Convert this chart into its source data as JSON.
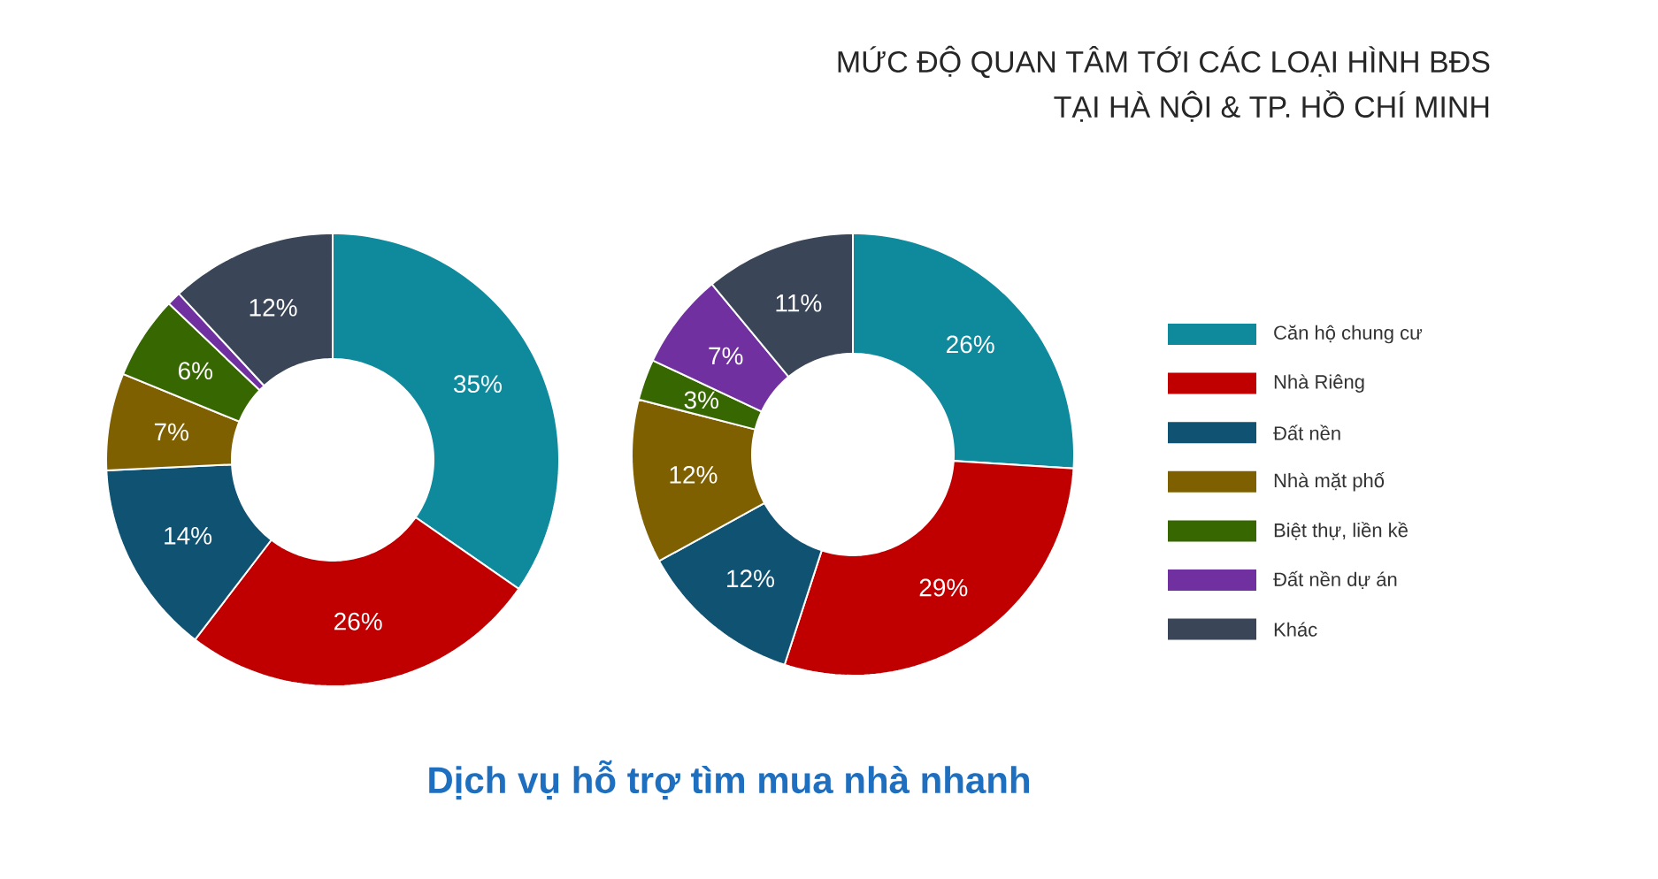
{
  "chart_data": [
    {
      "type": "donut",
      "categories": [
        null,
        null,
        null,
        null,
        null,
        null,
        null
      ],
      "values": [
        35,
        26,
        14,
        7,
        6,
        1,
        12
      ],
      "value_labels": [
        "35%",
        "26%",
        "14%",
        "7%",
        "6%",
        null,
        "12%"
      ],
      "colors": [
        "#0e8a9c",
        "#c00000",
        "#0f5272",
        "#7f6000",
        "#376700",
        "#7030a0",
        "#3a4658"
      ],
      "annotations": [
        "Dịch vụ hỗ trợ tìm mua nhà nhanh"
      ],
      "legend": false
    },
    {
      "type": "donut",
      "title": "MỨC ĐỘ QUAN TÂM TỚI CÁC LOẠI HÌNH BĐS",
      "subtitle": "TẠI HÀ NỘI & TP. HỒ CHÍ MINH",
      "categories": [
        "Căn hộ chung cư",
        "Nhà Riêng",
        "Đất nền",
        "Nhà mặt phố",
        "Biệt thự, liền kề",
        "Đất nền dự án",
        "Khác"
      ],
      "values": [
        26,
        29,
        12,
        12,
        3,
        7,
        11
      ],
      "value_labels": [
        "26%",
        "29%",
        "12%",
        "12%",
        "3%",
        "7%",
        "11%"
      ],
      "colors": [
        "#0e8a9c",
        "#c00000",
        "#0f5272",
        "#7f6000",
        "#376700",
        "#7030a0",
        "#3a4658"
      ],
      "legend": "right"
    }
  ]
}
